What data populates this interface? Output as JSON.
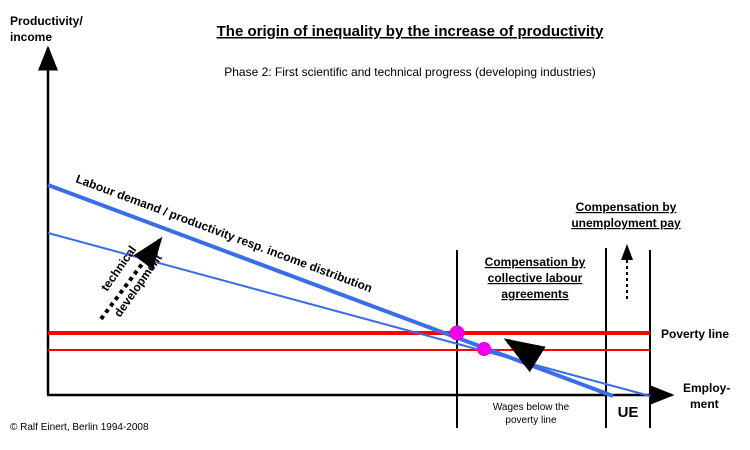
{
  "title": "The origin of inequality by the increase of productivity",
  "subtitle": "Phase 2: First scientific and technical progress (developing industries)",
  "y_axis_label": [
    "Productivity/",
    "income"
  ],
  "x_axis_label": [
    "Employ-",
    "ment"
  ],
  "curve_label": "Labour demand / productivity resp. income distribution",
  "tech_label": [
    "technical",
    "development"
  ],
  "collective_label": [
    "Compensation by",
    "collective labour",
    "agreements"
  ],
  "unemployment_label": [
    "Compensation by",
    "unemployment pay"
  ],
  "poverty_label": "Poverty line",
  "wages_label": [
    "Wages below the",
    "poverty line"
  ],
  "ue_label": "UE",
  "copyright": "© Ralf Einert, Berlin 1994-2008",
  "colors": {
    "blue": "#3a6ee8",
    "red": "#ff0000",
    "magenta": "#ee00ee"
  }
}
